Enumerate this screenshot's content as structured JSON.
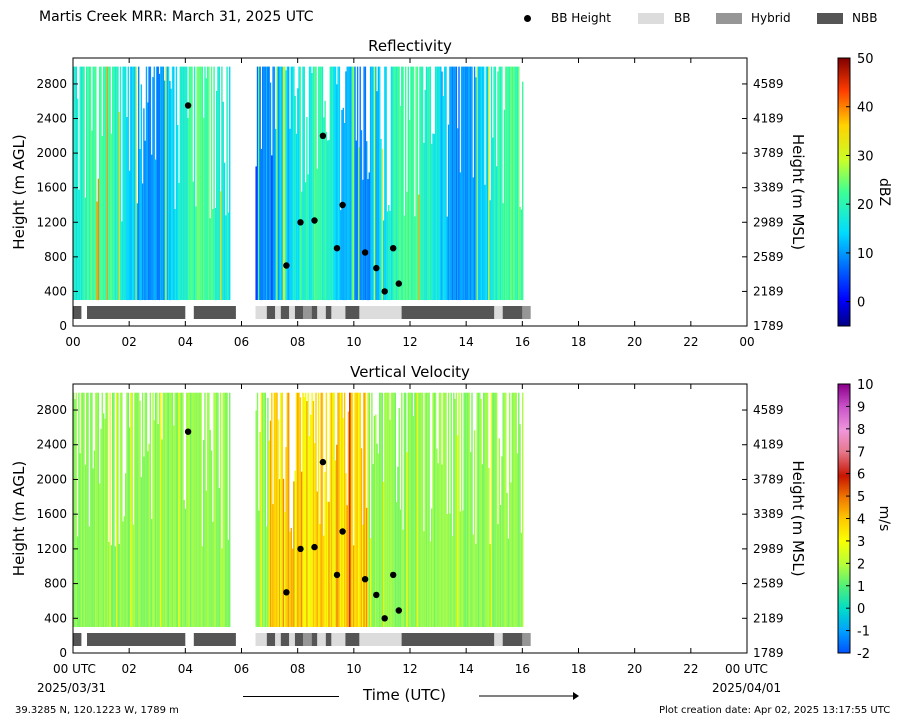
{
  "header": {
    "title": "Martis Creek MRR:  March 31, 2025 UTC",
    "legend": [
      {
        "label": "BB Height",
        "kind": "dot",
        "color": "#000000"
      },
      {
        "label": "BB",
        "kind": "box",
        "color": "#dcdcdc"
      },
      {
        "label": "Hybrid",
        "kind": "box",
        "color": "#969696"
      },
      {
        "label": "NBB",
        "kind": "box",
        "color": "#555555"
      }
    ]
  },
  "footer": {
    "location": "39.3285 N, 120.1223 W, 1789 m",
    "creation_date": "Plot creation date: Apr 02, 2025 13:17:55 UTC",
    "date_left": "2025/03/31",
    "date_right": "2025/04/01"
  },
  "chart_data": [
    {
      "type": "heatmap",
      "title": "Reflectivity",
      "xlabel": "",
      "ylabel": "Height (m AGL)",
      "y2label": "Height (m MSL)",
      "x_ticks": [
        "00",
        "02",
        "04",
        "06",
        "08",
        "10",
        "12",
        "14",
        "16",
        "18",
        "20",
        "22",
        "00"
      ],
      "xlim": [
        0,
        24
      ],
      "ylim": [
        0,
        3100
      ],
      "y_ticks": [
        0,
        400,
        800,
        1200,
        1600,
        2000,
        2400,
        2800
      ],
      "y2_ticks": [
        1789,
        2189,
        2589,
        2989,
        3389,
        3789,
        4189,
        4589
      ],
      "colorbar": {
        "label": "dBZ",
        "range": [
          -5,
          50
        ],
        "ticks": [
          0,
          10,
          20,
          30,
          40,
          50
        ]
      },
      "data_coverage_hours": [
        [
          0.0,
          5.6
        ],
        [
          6.5,
          16.0
        ]
      ],
      "bb_height_points": [
        [
          4.1,
          2550
        ],
        [
          8.9,
          2200
        ],
        [
          9.6,
          1400
        ],
        [
          8.1,
          1200
        ],
        [
          8.6,
          1220
        ],
        [
          9.4,
          900
        ],
        [
          10.4,
          850
        ],
        [
          11.4,
          900
        ],
        [
          10.8,
          670
        ],
        [
          7.6,
          700
        ],
        [
          11.6,
          490
        ],
        [
          11.1,
          400
        ]
      ],
      "bb_type_bar": [
        {
          "start": 0.0,
          "end": 0.3,
          "kind": "NBB"
        },
        {
          "start": 0.5,
          "end": 4.0,
          "kind": "NBB"
        },
        {
          "start": 4.3,
          "end": 5.8,
          "kind": "NBB"
        },
        {
          "start": 6.5,
          "end": 6.9,
          "kind": "BB"
        },
        {
          "start": 6.9,
          "end": 7.2,
          "kind": "NBB"
        },
        {
          "start": 7.2,
          "end": 7.4,
          "kind": "BB"
        },
        {
          "start": 7.4,
          "end": 7.7,
          "kind": "NBB"
        },
        {
          "start": 7.7,
          "end": 7.9,
          "kind": "BB"
        },
        {
          "start": 7.9,
          "end": 8.2,
          "kind": "NBB"
        },
        {
          "start": 8.2,
          "end": 8.5,
          "kind": "Hybrid"
        },
        {
          "start": 8.5,
          "end": 8.7,
          "kind": "NBB"
        },
        {
          "start": 8.7,
          "end": 9.0,
          "kind": "BB"
        },
        {
          "start": 9.0,
          "end": 9.2,
          "kind": "NBB"
        },
        {
          "start": 9.2,
          "end": 9.7,
          "kind": "BB"
        },
        {
          "start": 9.7,
          "end": 10.2,
          "kind": "NBB"
        },
        {
          "start": 10.2,
          "end": 11.7,
          "kind": "BB"
        },
        {
          "start": 11.7,
          "end": 15.0,
          "kind": "NBB"
        },
        {
          "start": 15.0,
          "end": 15.3,
          "kind": "BB"
        },
        {
          "start": 15.3,
          "end": 16.0,
          "kind": "NBB"
        },
        {
          "start": 16.0,
          "end": 16.3,
          "kind": "Hybrid"
        }
      ]
    },
    {
      "type": "heatmap",
      "title": "Vertical Velocity",
      "xlabel": "Time (UTC)",
      "ylabel": "Height (m AGL)",
      "y2label": "Height (m MSL)",
      "x_ticks": [
        "00 UTC",
        "02",
        "04",
        "06",
        "08",
        "10",
        "12",
        "14",
        "16",
        "18",
        "20",
        "22",
        "00 UTC"
      ],
      "xlim": [
        0,
        24
      ],
      "ylim": [
        0,
        3100
      ],
      "y_ticks": [
        0,
        400,
        800,
        1200,
        1600,
        2000,
        2400,
        2800
      ],
      "y2_ticks": [
        1789,
        2189,
        2589,
        2989,
        3389,
        3789,
        4189,
        4589
      ],
      "colorbar": {
        "label": "m/s",
        "range": [
          -2,
          10
        ],
        "ticks": [
          -2,
          -1,
          0,
          1,
          2,
          3,
          4,
          5,
          6,
          7,
          8,
          9,
          10
        ]
      },
      "data_coverage_hours": [
        [
          0.0,
          5.6
        ],
        [
          6.5,
          16.0
        ]
      ],
      "bb_height_points": [
        [
          4.1,
          2550
        ],
        [
          8.9,
          2200
        ],
        [
          9.6,
          1400
        ],
        [
          8.1,
          1200
        ],
        [
          8.6,
          1220
        ],
        [
          9.4,
          900
        ],
        [
          10.4,
          850
        ],
        [
          11.4,
          900
        ],
        [
          10.8,
          670
        ],
        [
          7.6,
          700
        ],
        [
          11.6,
          490
        ],
        [
          11.1,
          400
        ]
      ],
      "bb_type_bar": "same as Reflectivity"
    }
  ]
}
